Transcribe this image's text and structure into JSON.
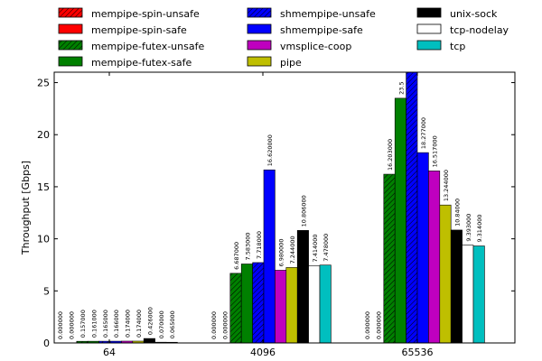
{
  "chart_data": {
    "type": "bar",
    "title": "",
    "xlabel": "",
    "ylabel": "Throughput [Gbps]",
    "ylim": [
      0,
      26
    ],
    "yticks": [
      0,
      5,
      10,
      15,
      20,
      25
    ],
    "categories": [
      "64",
      "4096",
      "65536"
    ],
    "series": [
      {
        "name": "mempipe-spin-unsafe",
        "color": "#ff0000",
        "hatch": true,
        "values": [
          0.0,
          0.0,
          0.0
        ],
        "labels": [
          "0.000000",
          "0.000000",
          "0.000000"
        ]
      },
      {
        "name": "mempipe-spin-safe",
        "color": "#ff0000",
        "hatch": false,
        "values": [
          0.0,
          0.0,
          0.0
        ],
        "labels": [
          "0.000000",
          "0.000000",
          "0.000000"
        ]
      },
      {
        "name": "mempipe-futex-unsafe",
        "color": "#008000",
        "hatch": true,
        "values": [
          0.157,
          6.687,
          16.203
        ],
        "labels": [
          "0.157000",
          "6.687000",
          "16.203000"
        ]
      },
      {
        "name": "mempipe-futex-safe",
        "color": "#008000",
        "hatch": false,
        "values": [
          0.161,
          7.583,
          23.5
        ],
        "labels": [
          "0.161000",
          "7.583000",
          "23.5"
        ]
      },
      {
        "name": "shmempipe-unsafe",
        "color": "#0000ff",
        "hatch": true,
        "values": [
          0.165,
          7.718,
          26.0
        ],
        "labels": [
          "0.165000",
          "7.718000",
          ""
        ]
      },
      {
        "name": "shmempipe-safe",
        "color": "#0000ff",
        "hatch": false,
        "values": [
          0.166,
          16.62,
          18.277
        ],
        "labels": [
          "0.166000",
          "16.620000",
          "18.277000"
        ]
      },
      {
        "name": "vmsplice-coop",
        "color": "#bf00bf",
        "hatch": false,
        "values": [
          0.174,
          6.98,
          16.517
        ],
        "labels": [
          "0.174000",
          "6.980000",
          "16.517000"
        ]
      },
      {
        "name": "pipe",
        "color": "#bfbf00",
        "hatch": false,
        "values": [
          0.174,
          7.244,
          13.244
        ],
        "labels": [
          "0.174000",
          "7.244000",
          "13.244000"
        ]
      },
      {
        "name": "unix-sock",
        "color": "#000000",
        "hatch": false,
        "values": [
          0.426,
          10.806,
          10.84
        ],
        "labels": [
          "0.426000",
          "10.806000",
          "10.84000"
        ]
      },
      {
        "name": "tcp-nodelay",
        "color": "#ffffff",
        "hatch": false,
        "values": [
          0.07,
          7.414,
          9.393
        ],
        "labels": [
          "0.070000",
          "7.414000",
          "9.393000"
        ]
      },
      {
        "name": "tcp",
        "color": "#00bfbf",
        "hatch": false,
        "values": [
          0.065,
          7.478,
          9.314
        ],
        "labels": [
          "0.065000",
          "7.478000",
          "9.314000"
        ]
      }
    ],
    "legend": "top, three columns"
  }
}
